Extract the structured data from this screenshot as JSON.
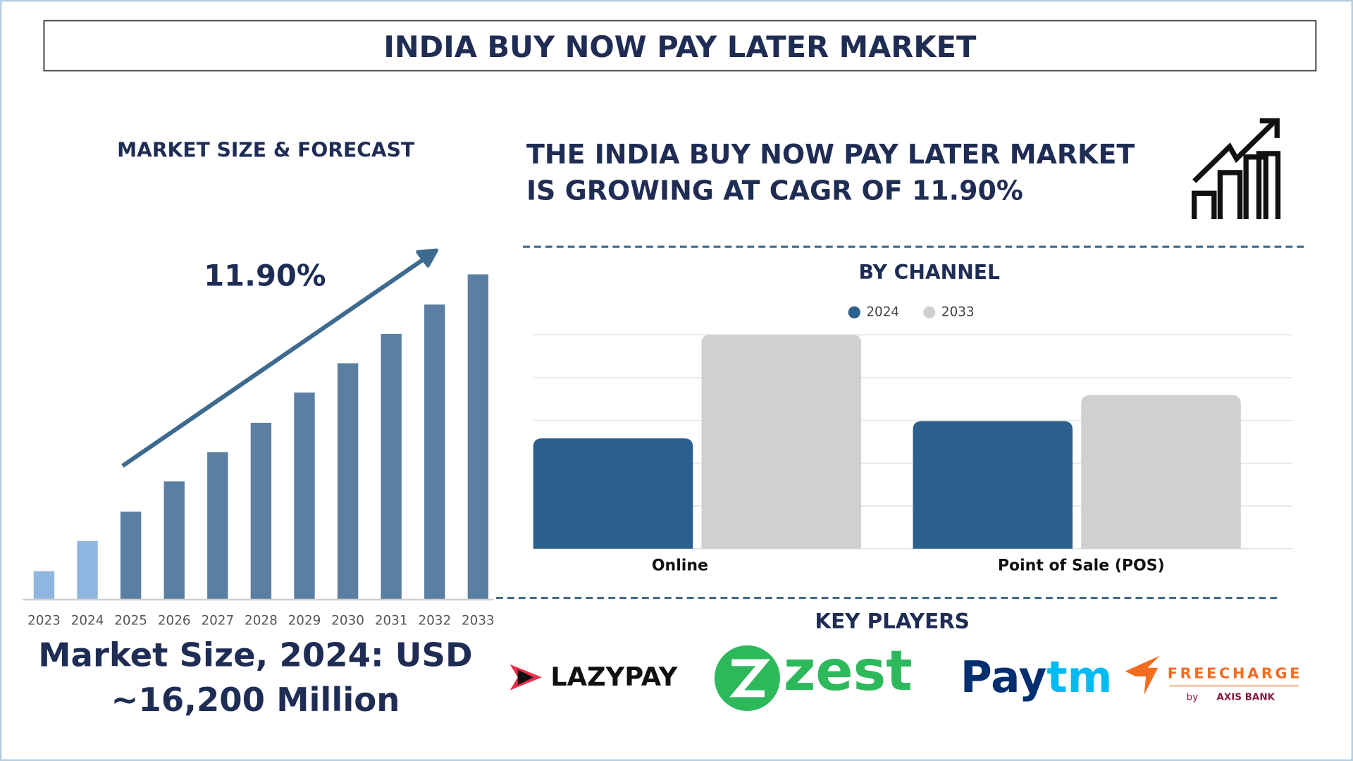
{
  "title": "INDIA BUY NOW PAY LATER MARKET",
  "left_heading": "MARKET SIZE & FORECAST",
  "market_size": [
    "Market Size, 2024: USD",
    "~16,200 Million"
  ],
  "headline": [
    "THE INDIA BUY NOW PAY LATER MARKET",
    "IS GROWING AT CAGR OF 11.90%"
  ],
  "key_players": {
    "heading": "KEY PLAYERS",
    "lazypay": "LAZYPAY",
    "zest": "zest",
    "paytm": [
      "Pay",
      "tm"
    ],
    "freecharge": [
      "FREECHARGE",
      "by",
      "AXIS BANK"
    ]
  },
  "chart_data": [
    {
      "type": "bar",
      "annotation": "11.90%",
      "categories": [
        "2023",
        "2024",
        "2025",
        "2026",
        "2027",
        "2028",
        "2029",
        "2030",
        "2031",
        "2032",
        "2033"
      ],
      "values": [
        33,
        68,
        102,
        137,
        171,
        205,
        240,
        274,
        308,
        342,
        377
      ],
      "colors": [
        "#8fb6e0",
        "#8fb6e0",
        "#5b7fa3",
        "#5b7fa3",
        "#5b7fa3",
        "#5b7fa3",
        "#5b7fa3",
        "#5b7fa3",
        "#5b7fa3",
        "#5b7fa3",
        "#5b7fa3"
      ],
      "ylim": [
        0,
        377
      ]
    },
    {
      "type": "grouped-bar",
      "title": "BY CHANNEL",
      "categories": [
        "Online",
        "Point of Sale (POS)"
      ],
      "series": [
        {
          "name": "2024",
          "color": "#2a5f8e",
          "values": [
            2.58,
            2.98
          ]
        },
        {
          "name": "2033",
          "color": "#d0d0d0",
          "values": [
            5,
            3.59
          ]
        }
      ],
      "ylim": [
        0,
        5
      ],
      "yticks": [
        0,
        1,
        2,
        3,
        4,
        5
      ],
      "grid": true
    }
  ]
}
